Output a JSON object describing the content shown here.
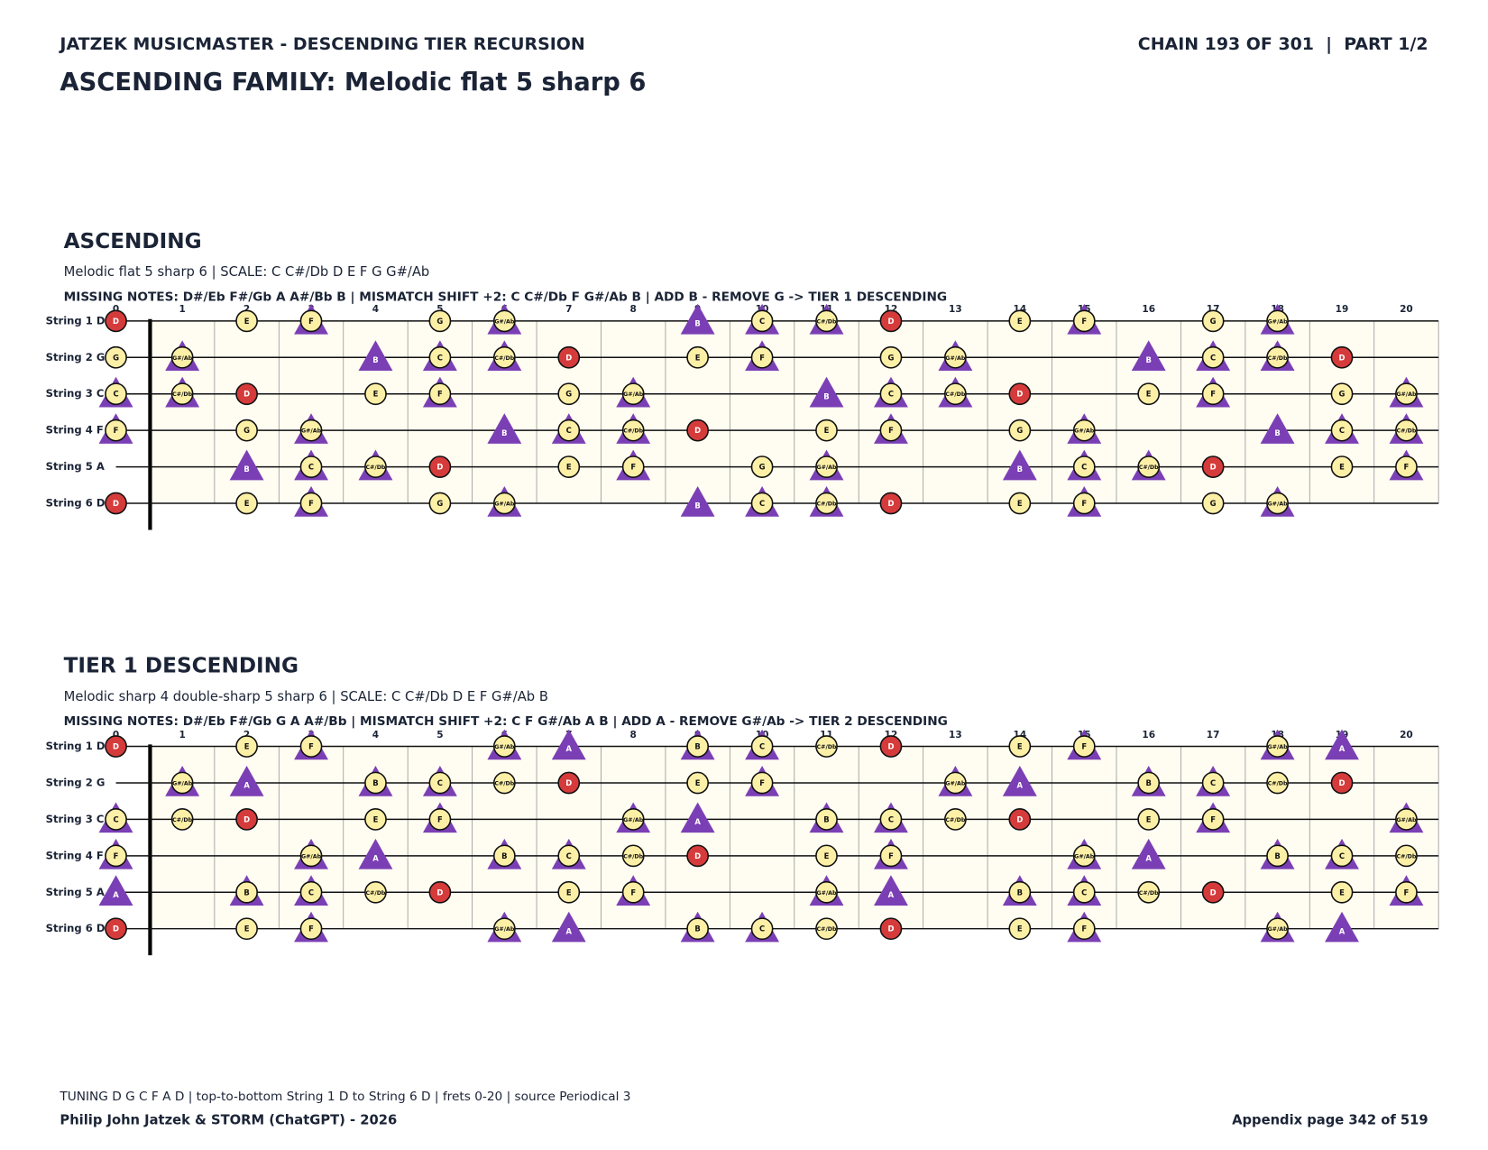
{
  "header": {
    "left": "JATZEK MUSICMASTER - DESCENDING TIER RECURSION",
    "right": "CHAIN 193 OF 301  |  PART 1/2",
    "title": "ASCENDING FAMILY: Melodic flat 5 sharp 6"
  },
  "frets": [
    0,
    1,
    2,
    3,
    4,
    5,
    6,
    7,
    8,
    9,
    10,
    11,
    12,
    13,
    14,
    15,
    16,
    17,
    18,
    19,
    20
  ],
  "diagrams": [
    {
      "heading": "ASCENDING",
      "subtitle": "Melodic flat 5 sharp 6  |  SCALE: C C#/Db D E F G G#/Ab",
      "missing": "MISSING NOTES: D#/Eb F#/Gb A A#/Bb B  |  MISMATCH SHIFT +2: C C#/Db F G#/Ab B  |  ADD B - REMOVE G -> TIER 1 DESCENDING",
      "root": "D",
      "shift_notes": [
        "C",
        "C#/Db",
        "F",
        "G#/Ab",
        "B"
      ],
      "added_note": "B",
      "strings": [
        {
          "label": "String 1 D",
          "notes": [
            "D",
            null,
            "E",
            "F",
            null,
            "G",
            "G#/Ab",
            null,
            null,
            "B",
            "C",
            "C#/Db",
            "D",
            null,
            "E",
            "F",
            null,
            "G",
            "G#/Ab",
            null,
            null
          ]
        },
        {
          "label": "String 2 G",
          "notes": [
            "G",
            "G#/Ab",
            null,
            null,
            "B",
            "C",
            "C#/Db",
            "D",
            null,
            "E",
            "F",
            null,
            "G",
            "G#/Ab",
            null,
            null,
            "B",
            "C",
            "C#/Db",
            "D",
            null
          ]
        },
        {
          "label": "String 3 C",
          "notes": [
            "C",
            "C#/Db",
            "D",
            null,
            "E",
            "F",
            null,
            "G",
            "G#/Ab",
            null,
            null,
            "B",
            "C",
            "C#/Db",
            "D",
            null,
            "E",
            "F",
            null,
            "G",
            "G#/Ab"
          ]
        },
        {
          "label": "String 4 F",
          "notes": [
            "F",
            null,
            "G",
            "G#/Ab",
            null,
            null,
            "B",
            "C",
            "C#/Db",
            "D",
            null,
            "E",
            "F",
            null,
            "G",
            "G#/Ab",
            null,
            null,
            "B",
            "C",
            "C#/Db"
          ]
        },
        {
          "label": "String 5 A",
          "notes": [
            null,
            null,
            "B",
            "C",
            "C#/Db",
            "D",
            null,
            "E",
            "F",
            null,
            "G",
            "G#/Ab",
            null,
            null,
            "B",
            "C",
            "C#/Db",
            "D",
            null,
            "E",
            "F"
          ]
        },
        {
          "label": "String 6 D",
          "notes": [
            "D",
            null,
            "E",
            "F",
            null,
            "G",
            "G#/Ab",
            null,
            null,
            "B",
            "C",
            "C#/Db",
            "D",
            null,
            "E",
            "F",
            null,
            "G",
            "G#/Ab",
            null,
            null
          ]
        }
      ]
    },
    {
      "heading": "TIER 1 DESCENDING",
      "subtitle": "Melodic sharp 4 double-sharp 5 sharp 6  |  SCALE: C C#/Db D E F G#/Ab B",
      "missing": "MISSING NOTES: D#/Eb F#/Gb G A A#/Bb  |  MISMATCH SHIFT +2: C F G#/Ab A B  |  ADD A - REMOVE G#/Ab -> TIER 2 DESCENDING",
      "root": "D",
      "shift_notes": [
        "C",
        "F",
        "G#/Ab",
        "A",
        "B"
      ],
      "added_note": "A",
      "strings": [
        {
          "label": "String 1 D",
          "notes": [
            "D",
            null,
            "E",
            "F",
            null,
            null,
            "G#/Ab",
            "A",
            null,
            "B",
            "C",
            "C#/Db",
            "D",
            null,
            "E",
            "F",
            null,
            null,
            "G#/Ab",
            "A",
            null
          ]
        },
        {
          "label": "String 2 G",
          "notes": [
            null,
            "G#/Ab",
            "A",
            null,
            "B",
            "C",
            "C#/Db",
            "D",
            null,
            "E",
            "F",
            null,
            null,
            "G#/Ab",
            "A",
            null,
            "B",
            "C",
            "C#/Db",
            "D",
            null
          ]
        },
        {
          "label": "String 3 C",
          "notes": [
            "C",
            "C#/Db",
            "D",
            null,
            "E",
            "F",
            null,
            null,
            "G#/Ab",
            "A",
            null,
            "B",
            "C",
            "C#/Db",
            "D",
            null,
            "E",
            "F",
            null,
            null,
            "G#/Ab"
          ]
        },
        {
          "label": "String 4 F",
          "notes": [
            "F",
            null,
            null,
            "G#/Ab",
            "A",
            null,
            "B",
            "C",
            "C#/Db",
            "D",
            null,
            "E",
            "F",
            null,
            null,
            "G#/Ab",
            "A",
            null,
            "B",
            "C",
            "C#/Db"
          ]
        },
        {
          "label": "String 5 A",
          "notes": [
            "A",
            null,
            "B",
            "C",
            "C#/Db",
            "D",
            null,
            "E",
            "F",
            null,
            null,
            "G#/Ab",
            "A",
            null,
            "B",
            "C",
            "C#/Db",
            "D",
            null,
            "E",
            "F"
          ]
        },
        {
          "label": "String 6 D",
          "notes": [
            "D",
            null,
            "E",
            "F",
            null,
            null,
            "G#/Ab",
            "A",
            null,
            "B",
            "C",
            "C#/Db",
            "D",
            null,
            "E",
            "F",
            null,
            null,
            "G#/Ab",
            "A",
            null
          ]
        }
      ]
    }
  ],
  "footer": {
    "tuning": "TUNING D G C F A D | top-to-bottom String 1 D to String 6 D | frets 0-20 | source Periodical 3",
    "authors": "Philip John Jatzek & STORM (ChatGPT) - 2026",
    "page": "Appendix page 342 of 519"
  }
}
